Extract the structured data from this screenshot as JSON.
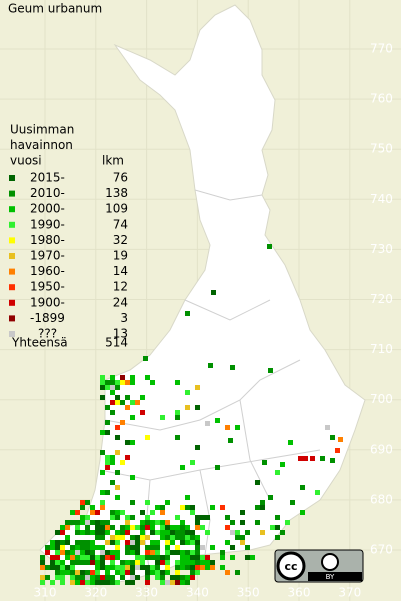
{
  "title": "Geum urbanum",
  "legend": {
    "header": [
      "Uusimman",
      "havainnon",
      "vuosi"
    ],
    "count_header": "lkm",
    "rows": [
      {
        "label": "2015-",
        "count": 76,
        "color": "#006400"
      },
      {
        "label": "2010-",
        "count": 138,
        "color": "#009000"
      },
      {
        "label": "2000-",
        "count": 109,
        "color": "#00c000"
      },
      {
        "label": "1990-",
        "count": 74,
        "color": "#30f030"
      },
      {
        "label": "1980-",
        "count": 32,
        "color": "#ffff00"
      },
      {
        "label": "1970-",
        "count": 19,
        "color": "#e8c020"
      },
      {
        "label": "1960-",
        "count": 14,
        "color": "#ff8000"
      },
      {
        "label": "1950-",
        "count": 12,
        "color": "#ff3000"
      },
      {
        "label": "1900-",
        "count": 24,
        "color": "#d00000"
      },
      {
        "label": "-1899",
        "count": 3,
        "color": "#900000"
      },
      {
        "label": "???",
        "count": 13,
        "color": "#c8c8c8"
      }
    ],
    "total_label": "Yhteensä",
    "total": 514
  },
  "axes": {
    "y_labels": [
      770,
      760,
      750,
      740,
      730,
      720,
      710,
      700,
      690,
      680,
      670
    ],
    "x_labels": [
      310,
      320,
      330,
      340,
      350,
      360,
      370
    ]
  },
  "license": {
    "logo": "cc",
    "label": "BY"
  }
}
